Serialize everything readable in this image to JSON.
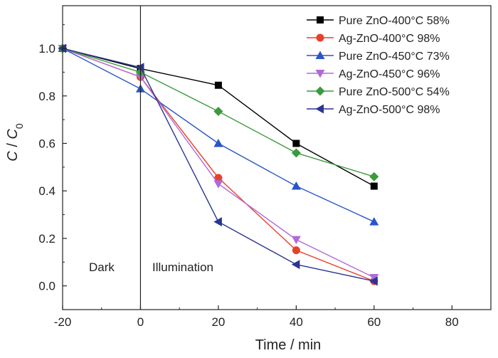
{
  "chart_data": {
    "type": "line",
    "xlabel": "Time / min",
    "ylabel_main": "C",
    "ylabel_sep": " / ",
    "ylabel_sub_base": "C",
    "ylabel_subscript": "0",
    "xlim": [
      -20,
      90
    ],
    "ylim": [
      -0.1,
      1.18
    ],
    "xticks": [
      "-20",
      "0",
      "20",
      "40",
      "60",
      "80"
    ],
    "xtick_values": [
      -20,
      0,
      20,
      40,
      60,
      80
    ],
    "yticks": [
      "0.0",
      "0.2",
      "0.4",
      "0.6",
      "0.8",
      "1.0"
    ],
    "ytick_values": [
      0.0,
      0.2,
      0.4,
      0.6,
      0.8,
      1.0
    ],
    "grid": false,
    "legend_position": "top-right",
    "x": [
      -20,
      0,
      20,
      40,
      60
    ],
    "series": [
      {
        "name": "Pure ZnO-400°C 58%",
        "color": "#000000",
        "marker": "square",
        "values": [
          1.0,
          0.915,
          0.845,
          0.6,
          0.42
        ]
      },
      {
        "name": "Ag-ZnO-400°C 98%",
        "color": "#e8412a",
        "marker": "circle",
        "values": [
          1.0,
          0.88,
          0.455,
          0.15,
          0.02
        ]
      },
      {
        "name": "Pure ZnO-450°C 73%",
        "color": "#2a55c8",
        "marker": "triangle-up",
        "values": [
          1.0,
          0.83,
          0.6,
          0.42,
          0.27
        ]
      },
      {
        "name": "Ag-ZnO-450°C 96%",
        "color": "#b06ad8",
        "marker": "triangle-down",
        "values": [
          1.0,
          0.88,
          0.43,
          0.195,
          0.035
        ]
      },
      {
        "name": "Pure ZnO-500°C 54%",
        "color": "#3c9a3c",
        "marker": "diamond",
        "values": [
          1.0,
          0.9,
          0.735,
          0.56,
          0.46
        ]
      },
      {
        "name": "Ag-ZnO-500°C 98%",
        "color": "#2b3590",
        "marker": "triangle-left",
        "values": [
          1.0,
          0.92,
          0.27,
          0.09,
          0.02
        ]
      }
    ],
    "annotations": {
      "dark_label": "Dark",
      "illumination_label": "Illumination",
      "divider_x": 0
    }
  }
}
